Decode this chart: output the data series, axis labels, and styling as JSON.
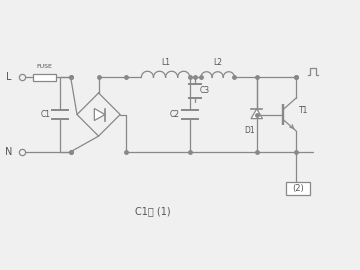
{
  "bg_color": "#f0f0f0",
  "line_color": "#888888",
  "text_color": "#555555",
  "title": "C1： (1)",
  "label_L": "L",
  "label_N": "N",
  "label_fuse": "FUSE",
  "label_C1": "C1",
  "label_C2": "C2",
  "label_C3": "C3",
  "label_L1": "L1",
  "label_L2": "L2",
  "label_D1": "D1",
  "label_T1": "T1",
  "label_2": "(2)",
  "yT": 4.8,
  "yB": 2.8,
  "xL": 0.5,
  "xFuseL": 0.8,
  "xFuseR": 1.4,
  "xV1": 1.8,
  "xBcx": 2.55,
  "xV2": 3.3,
  "xL1s": 3.7,
  "xL1e": 5.0,
  "xL2s": 5.3,
  "xL2e": 6.2,
  "xV3": 6.2,
  "xD1": 6.8,
  "xT1": 7.5,
  "xRight": 8.2,
  "xBox": 7.9,
  "yBox": 1.8,
  "xTitle": 4.0,
  "yTitle": 1.2
}
